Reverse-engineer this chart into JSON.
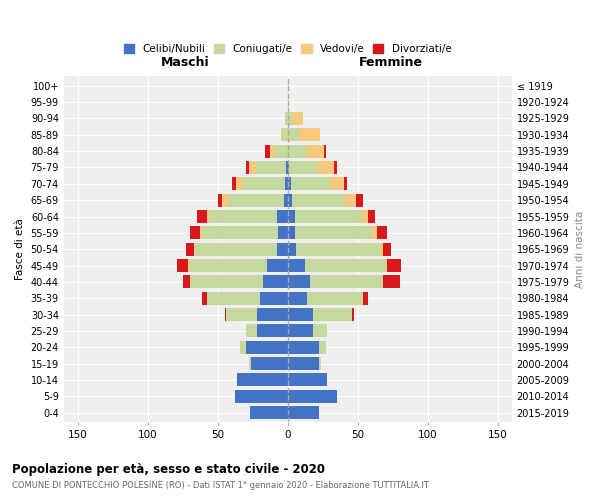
{
  "age_groups": [
    "0-4",
    "5-9",
    "10-14",
    "15-19",
    "20-24",
    "25-29",
    "30-34",
    "35-39",
    "40-44",
    "45-49",
    "50-54",
    "55-59",
    "60-64",
    "65-69",
    "70-74",
    "75-79",
    "80-84",
    "85-89",
    "90-94",
    "95-99",
    "100+"
  ],
  "birth_years": [
    "2015-2019",
    "2010-2014",
    "2005-2009",
    "2000-2004",
    "1995-1999",
    "1990-1994",
    "1985-1989",
    "1980-1984",
    "1975-1979",
    "1970-1974",
    "1965-1969",
    "1960-1964",
    "1955-1959",
    "1950-1954",
    "1945-1949",
    "1940-1944",
    "1935-1939",
    "1930-1934",
    "1925-1929",
    "1920-1924",
    "≤ 1919"
  ],
  "males": {
    "celibi": [
      27,
      38,
      36,
      26,
      30,
      22,
      22,
      20,
      18,
      15,
      8,
      7,
      8,
      3,
      2,
      1,
      0,
      0,
      0,
      0,
      0
    ],
    "coniugati": [
      0,
      0,
      0,
      2,
      4,
      8,
      22,
      38,
      52,
      55,
      58,
      55,
      48,
      40,
      30,
      22,
      9,
      4,
      2,
      0,
      0
    ],
    "vedovi": [
      0,
      0,
      0,
      0,
      0,
      0,
      0,
      0,
      0,
      1,
      1,
      1,
      2,
      4,
      5,
      5,
      4,
      1,
      0,
      0,
      0
    ],
    "divorziati": [
      0,
      0,
      0,
      0,
      0,
      0,
      1,
      3,
      5,
      8,
      6,
      7,
      7,
      3,
      3,
      2,
      3,
      0,
      0,
      0,
      0
    ]
  },
  "females": {
    "nubili": [
      22,
      35,
      28,
      22,
      22,
      18,
      18,
      14,
      16,
      12,
      6,
      5,
      5,
      3,
      2,
      1,
      0,
      0,
      0,
      0,
      0
    ],
    "coniugate": [
      0,
      0,
      0,
      2,
      5,
      10,
      28,
      40,
      52,
      58,
      60,
      55,
      47,
      38,
      28,
      20,
      14,
      8,
      3,
      0,
      0
    ],
    "vedove": [
      0,
      0,
      0,
      0,
      0,
      0,
      0,
      0,
      0,
      1,
      2,
      4,
      5,
      8,
      10,
      12,
      12,
      15,
      8,
      1,
      1
    ],
    "divorziate": [
      0,
      0,
      0,
      0,
      0,
      0,
      1,
      3,
      12,
      10,
      6,
      7,
      5,
      5,
      2,
      2,
      1,
      0,
      0,
      0,
      0
    ]
  },
  "colors": {
    "celibi": "#4472c4",
    "coniugati": "#c5d8a0",
    "vedovi": "#f5c97e",
    "divorziati": "#d7191c"
  },
  "title1": "Popolazione per età, sesso e stato civile - 2020",
  "title2": "COMUNE DI PONTECCHIO POLESINE (RO) - Dati ISTAT 1° gennaio 2020 - Elaborazione TUTTITALIA.IT",
  "xlabel_left": "Maschi",
  "xlabel_right": "Femmine",
  "ylabel_left": "Fasce di età",
  "ylabel_right": "Anni di nascita",
  "legend_labels": [
    "Celibi/Nubili",
    "Coniugati/e",
    "Vedovi/e",
    "Divorziati/e"
  ],
  "xlim": 160,
  "bg_plot": "#efefef",
  "bg_fig": "#ffffff"
}
